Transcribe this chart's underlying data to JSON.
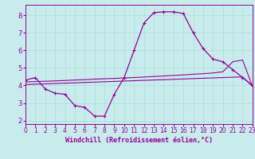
{
  "xlabel": "Windchill (Refroidissement éolien,°C)",
  "x": [
    0,
    1,
    2,
    3,
    4,
    5,
    6,
    7,
    8,
    9,
    10,
    11,
    12,
    13,
    14,
    15,
    16,
    17,
    18,
    19,
    20,
    21,
    22,
    23
  ],
  "line1": [
    4.3,
    4.45,
    3.8,
    3.55,
    3.5,
    2.85,
    2.75,
    2.25,
    2.25,
    3.5,
    4.45,
    6.0,
    7.55,
    8.15,
    8.2,
    8.2,
    8.1,
    7.0,
    6.1,
    5.5,
    5.35,
    4.9,
    4.45,
    4.0
  ],
  "line2": [
    4.2,
    4.22,
    4.24,
    4.26,
    4.28,
    4.31,
    4.33,
    4.36,
    4.38,
    4.4,
    4.43,
    4.45,
    4.48,
    4.51,
    4.54,
    4.57,
    4.6,
    4.64,
    4.67,
    4.71,
    4.78,
    5.35,
    5.45,
    3.95
  ],
  "line3": [
    4.05,
    4.07,
    4.09,
    4.11,
    4.13,
    4.15,
    4.17,
    4.19,
    4.21,
    4.23,
    4.25,
    4.27,
    4.29,
    4.31,
    4.33,
    4.35,
    4.37,
    4.39,
    4.41,
    4.43,
    4.45,
    4.47,
    4.49,
    3.95
  ],
  "bg_color": "#c8ecec",
  "line_color": "#990099",
  "grid_color": "#aadddd",
  "ylim": [
    1.8,
    8.6
  ],
  "xlim": [
    0,
    23
  ],
  "yticks": [
    2,
    3,
    4,
    5,
    6,
    7,
    8
  ],
  "xticks": [
    0,
    1,
    2,
    3,
    4,
    5,
    6,
    7,
    8,
    9,
    10,
    11,
    12,
    13,
    14,
    15,
    16,
    17,
    18,
    19,
    20,
    21,
    22,
    23
  ],
  "tick_fontsize": 5.5,
  "xlabel_fontsize": 6.0
}
